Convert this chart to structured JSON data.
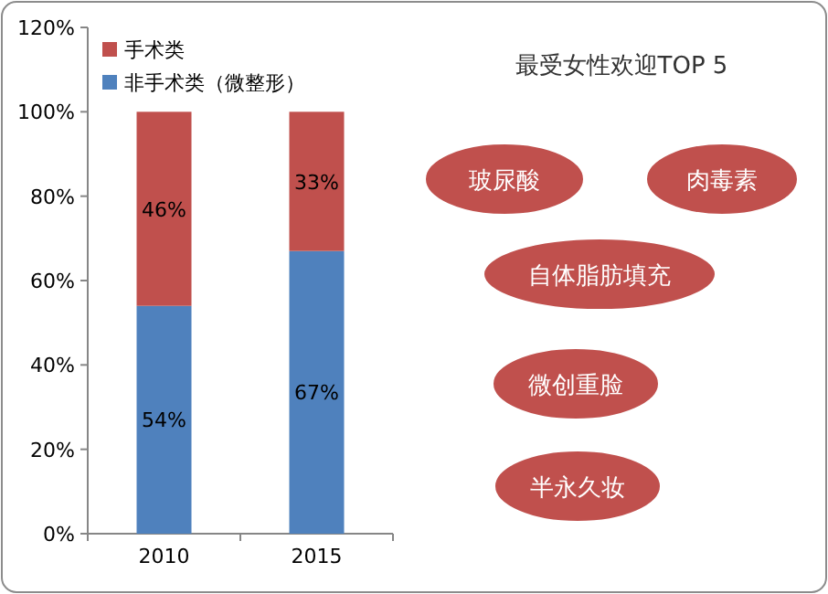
{
  "chart_data": [
    {
      "type": "bar",
      "stacked": true,
      "categories": [
        "2010",
        "2015"
      ],
      "series": [
        {
          "name": "非手术类（微整形）",
          "color": "#4f81bd",
          "values": [
            54,
            67
          ],
          "value_labels": [
            "54%",
            "67%"
          ]
        },
        {
          "name": "手术类",
          "color": "#c0504d",
          "values": [
            46,
            33
          ],
          "value_labels": [
            "46%",
            "33%"
          ]
        }
      ],
      "ylim": [
        0,
        120
      ],
      "yticks": [
        {
          "value": 0,
          "label": "0%"
        },
        {
          "value": 20,
          "label": "20%"
        },
        {
          "value": 40,
          "label": "40%"
        },
        {
          "value": 60,
          "label": "60%"
        },
        {
          "value": 80,
          "label": "80%"
        },
        {
          "value": 100,
          "label": "100%"
        },
        {
          "value": 120,
          "label": "120%"
        }
      ],
      "legend": "top left"
    },
    {
      "type": "other",
      "title": "最受女性欢迎TOP 5",
      "annotations": [
        "玻尿酸",
        "肉毒素",
        "自体脂肪填充",
        "微创重脸",
        "半永久妆"
      ]
    }
  ]
}
